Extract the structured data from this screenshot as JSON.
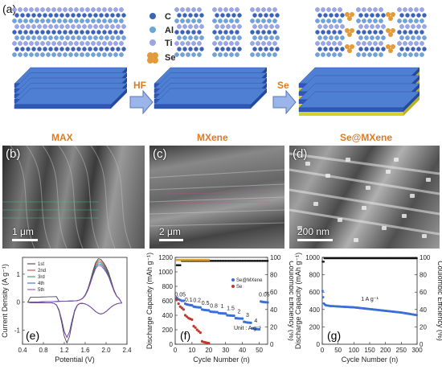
{
  "panels": {
    "a": "(a)",
    "b": "(b)",
    "c": "(c)",
    "d": "(d)",
    "e": "(e)",
    "f": "(f)",
    "g": "(g)"
  },
  "schematic": {
    "legend": [
      "C",
      "Al",
      "Ti",
      "Se"
    ],
    "stages": [
      "MAX",
      "MXene",
      "Se@MXene"
    ],
    "arrows": [
      "HF",
      "Se"
    ],
    "colors": {
      "C": "#3b63b8",
      "Al": "#6aa6d8",
      "Ti": "#9aa6e8",
      "Se": "#e39a3a",
      "slab_top": "#4f7fd2",
      "slab_side": "#2f58b8",
      "se_layer": "#d8d030"
    }
  },
  "sem": {
    "b_scale": "1 μm",
    "c_scale": "2 μm",
    "d_scale": "200 nm"
  },
  "chart_e": {
    "ylabel": "Current Density (A g⁻¹)",
    "xlabel": "Potential (V)",
    "xticks": [
      "0.4",
      "0.8",
      "1.2",
      "1.6",
      "2.0",
      "2.4"
    ],
    "yticks": [
      "1",
      "0",
      "-1"
    ],
    "legend": [
      "1st",
      "2nd",
      "3rd",
      "4th",
      "5th"
    ],
    "colors": [
      "#333333",
      "#c0392b",
      "#2e8b57",
      "#1f5fbf",
      "#8e44ad"
    ]
  },
  "chart_data": [
    {
      "type": "line",
      "title": "",
      "xlabel": "Potential (V)",
      "ylabel": "Current Density (A g⁻¹)",
      "xlim": [
        0.4,
        2.4
      ],
      "ylim": [
        -1.5,
        1.6
      ],
      "series": [
        {
          "name": "1st"
        },
        {
          "name": "2nd"
        },
        {
          "name": "3rd"
        },
        {
          "name": "4th"
        },
        {
          "name": "5th"
        }
      ]
    },
    {
      "type": "scatter",
      "xlabel": "Cycle Number (n)",
      "ylabel": "Discharge Capacity (mAh g⁻¹)",
      "y2label": "Coulombic Efficiency (%)",
      "xlim": [
        0,
        55
      ],
      "ylim": [
        0,
        1200
      ],
      "y2lim": [
        0,
        100
      ],
      "unit_note": "Unit : A g⁻¹",
      "rate_labels": [
        "0.05",
        "0.1",
        "0.2",
        "0.5",
        "0.8",
        "1",
        "1.5",
        "2",
        "3",
        "4",
        "0.05"
      ],
      "series": [
        {
          "name": "Se@MXene",
          "x": [
            1,
            2,
            3,
            4,
            5,
            6,
            7,
            8,
            9,
            10,
            11,
            12,
            13,
            14,
            15,
            16,
            17,
            18,
            19,
            20,
            21,
            22,
            23,
            24,
            25,
            26,
            27,
            28,
            29,
            30,
            31,
            32,
            33,
            34,
            35,
            36,
            37,
            38,
            39,
            40,
            41,
            42,
            43,
            44,
            45,
            46,
            47,
            48,
            49,
            50,
            51,
            52,
            53,
            54,
            55
          ],
          "values": [
            640,
            620,
            610,
            600,
            600,
            560,
            550,
            545,
            540,
            538,
            520,
            515,
            512,
            510,
            508,
            480,
            475,
            472,
            470,
            468,
            450,
            448,
            446,
            445,
            444,
            430,
            428,
            426,
            425,
            424,
            400,
            398,
            396,
            395,
            394,
            360,
            358,
            356,
            355,
            354,
            310,
            305,
            300,
            298,
            296,
            220,
            215,
            210,
            208,
            206,
            590,
            585,
            582,
            580,
            578
          ]
        },
        {
          "name": "Se",
          "x": [
            1,
            2,
            3,
            4,
            5,
            6,
            7,
            8,
            9,
            10,
            11,
            12,
            13,
            14,
            15,
            16,
            17,
            18,
            19,
            20
          ],
          "values": [
            620,
            560,
            520,
            500,
            480,
            400,
            380,
            360,
            350,
            340,
            250,
            230,
            200,
            180,
            160,
            40,
            30,
            25,
            20,
            15
          ]
        }
      ]
    },
    {
      "type": "scatter",
      "xlabel": "Cycle Number (n)",
      "ylabel": "Discharge Capacity (mAh g⁻¹)",
      "y2label": "Coulombic Efficiency (%)",
      "xlim": [
        0,
        300
      ],
      "ylim": [
        0,
        1000
      ],
      "y2lim": [
        0,
        100
      ],
      "annotation": "1 A g⁻¹",
      "series": [
        {
          "name": "capacity",
          "x": [
            0,
            5,
            10,
            25,
            50,
            75,
            100,
            125,
            150,
            175,
            200,
            225,
            250,
            275,
            300
          ],
          "values": [
            650,
            470,
            450,
            440,
            435,
            430,
            425,
            415,
            405,
            395,
            385,
            375,
            365,
            350,
            335
          ]
        },
        {
          "name": "efficiency",
          "x": [
            0,
            5,
            10,
            25,
            50,
            100,
            150,
            200,
            250,
            300
          ],
          "values": [
            95,
            98,
            99,
            99,
            99,
            99,
            99,
            99,
            99,
            99
          ]
        }
      ]
    }
  ],
  "axes_text": {
    "f_xticks": [
      "0",
      "10",
      "20",
      "30",
      "40",
      "50"
    ],
    "f_yticks": [
      "0",
      "200",
      "400",
      "600",
      "800",
      "1000",
      "1200"
    ],
    "f_y2ticks": [
      "0",
      "20",
      "40",
      "60",
      "80",
      "100"
    ],
    "g_xticks": [
      "0",
      "50",
      "100",
      "150",
      "200",
      "250",
      "300"
    ],
    "g_yticks": [
      "0",
      "200",
      "400",
      "600",
      "800",
      "1000"
    ],
    "g_y2ticks": [
      "0",
      "20",
      "40",
      "60",
      "80",
      "100"
    ]
  }
}
